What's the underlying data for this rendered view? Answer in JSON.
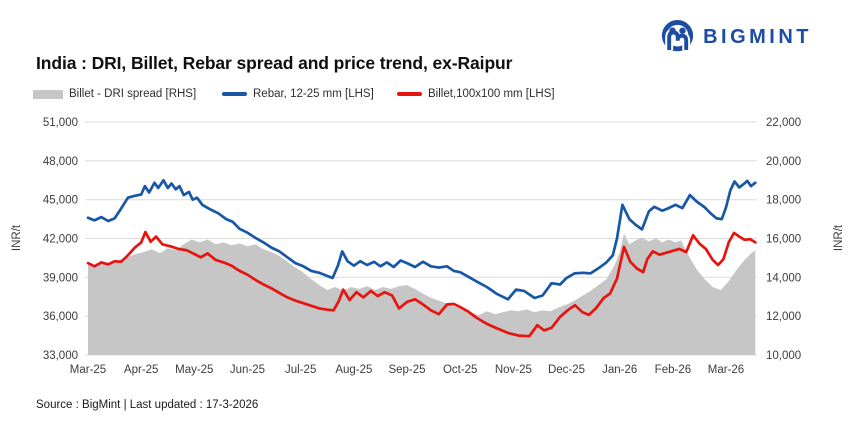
{
  "logo": {
    "text": "BIGMINT",
    "color": "#1c4da1"
  },
  "title": "India : DRI, Billet, Rebar spread and price trend, ex-Raipur",
  "legend": [
    {
      "label": "Billet - DRI spread  [RHS]",
      "swatch": "area",
      "color": "#c6c6c6"
    },
    {
      "label": "Rebar, 12-25 mm [LHS]",
      "swatch": "line",
      "color": "#1757a6"
    },
    {
      "label": "Billet,100x100 mm [LHS]",
      "swatch": "line",
      "color": "#e6140f"
    }
  ],
  "footer": {
    "source": "Source : BigMint | Last updated : 17-3-2026"
  },
  "chart_data": {
    "type": "line",
    "title": "India : DRI, Billet, Rebar spread and price trend, ex-Raipur",
    "x_unit": "months since Mar-2025 (fractional)",
    "x_tick_labels": [
      "Mar-25",
      "Apr-25",
      "May-25",
      "Jun-25",
      "Jul-25",
      "Aug-25",
      "Sep-25",
      "Oct-25",
      "Nov-25",
      "Dec-25",
      "Jan-26",
      "Feb-26",
      "Mar-26"
    ],
    "grid": "horizontal",
    "grid_color": "#dcdcdc",
    "left_axis": {
      "label": "INR/t",
      "min": 33000,
      "max": 51000,
      "step": 3000,
      "ticks": [
        33000,
        36000,
        39000,
        42000,
        45000,
        48000,
        51000
      ]
    },
    "right_axis": {
      "label": "INR/t",
      "min": 10000,
      "max": 22000,
      "step": 2000,
      "ticks": [
        10000,
        12000,
        14000,
        16000,
        18000,
        20000,
        22000
      ]
    },
    "series": [
      {
        "name": "Billet - DRI spread [RHS]",
        "type": "area",
        "axis": "right",
        "color": "#c6c6c6",
        "points": [
          [
            0.0,
            14800
          ],
          [
            0.15,
            14600
          ],
          [
            0.3,
            14800
          ],
          [
            0.45,
            14700
          ],
          [
            0.6,
            14900
          ],
          [
            0.75,
            15050
          ],
          [
            0.9,
            15200
          ],
          [
            1.05,
            15300
          ],
          [
            1.2,
            15450
          ],
          [
            1.35,
            15250
          ],
          [
            1.5,
            15500
          ],
          [
            1.65,
            15400
          ],
          [
            1.8,
            15700
          ],
          [
            1.95,
            15950
          ],
          [
            2.1,
            15800
          ],
          [
            2.25,
            15950
          ],
          [
            2.4,
            15700
          ],
          [
            2.55,
            15800
          ],
          [
            2.7,
            15650
          ],
          [
            2.85,
            15750
          ],
          [
            3.0,
            15600
          ],
          [
            3.15,
            15700
          ],
          [
            3.3,
            15450
          ],
          [
            3.45,
            15300
          ],
          [
            3.6,
            15100
          ],
          [
            3.75,
            14800
          ],
          [
            3.9,
            14500
          ],
          [
            4.05,
            14250
          ],
          [
            4.2,
            13900
          ],
          [
            4.35,
            13600
          ],
          [
            4.5,
            13350
          ],
          [
            4.65,
            13500
          ],
          [
            4.8,
            13300
          ],
          [
            4.95,
            13500
          ],
          [
            5.1,
            13400
          ],
          [
            5.25,
            13550
          ],
          [
            5.4,
            13350
          ],
          [
            5.55,
            13500
          ],
          [
            5.7,
            13400
          ],
          [
            5.85,
            13550
          ],
          [
            6.0,
            13600
          ],
          [
            6.15,
            13400
          ],
          [
            6.3,
            13150
          ],
          [
            6.45,
            12950
          ],
          [
            6.6,
            12800
          ],
          [
            6.75,
            12650
          ],
          [
            6.9,
            12500
          ],
          [
            7.05,
            12350
          ],
          [
            7.2,
            12200
          ],
          [
            7.35,
            12050
          ],
          [
            7.5,
            12250
          ],
          [
            7.65,
            12100
          ],
          [
            7.8,
            12200
          ],
          [
            7.95,
            12300
          ],
          [
            8.1,
            12250
          ],
          [
            8.25,
            12350
          ],
          [
            8.4,
            12200
          ],
          [
            8.55,
            12300
          ],
          [
            8.7,
            12250
          ],
          [
            8.85,
            12450
          ],
          [
            9.0,
            12600
          ],
          [
            9.15,
            12800
          ],
          [
            9.3,
            13050
          ],
          [
            9.45,
            13300
          ],
          [
            9.6,
            13600
          ],
          [
            9.75,
            13900
          ],
          [
            9.9,
            14600
          ],
          [
            10.0,
            15300
          ],
          [
            10.08,
            16250
          ],
          [
            10.18,
            15700
          ],
          [
            10.3,
            15900
          ],
          [
            10.42,
            16050
          ],
          [
            10.55,
            15850
          ],
          [
            10.68,
            16000
          ],
          [
            10.8,
            15800
          ],
          [
            10.92,
            15950
          ],
          [
            11.05,
            15800
          ],
          [
            11.15,
            15900
          ],
          [
            11.3,
            15100
          ],
          [
            11.45,
            14400
          ],
          [
            11.6,
            13900
          ],
          [
            11.75,
            13500
          ],
          [
            11.9,
            13350
          ],
          [
            12.05,
            13800
          ],
          [
            12.2,
            14400
          ],
          [
            12.35,
            14900
          ],
          [
            12.5,
            15300
          ],
          [
            12.55,
            15400
          ]
        ]
      },
      {
        "name": "Rebar, 12-25 mm [LHS]",
        "type": "line",
        "axis": "left",
        "color": "#1757a6",
        "width": 2.7,
        "points": [
          [
            0.0,
            43600
          ],
          [
            0.12,
            43400
          ],
          [
            0.25,
            43650
          ],
          [
            0.38,
            43350
          ],
          [
            0.5,
            43550
          ],
          [
            0.62,
            44300
          ],
          [
            0.75,
            45150
          ],
          [
            0.88,
            45300
          ],
          [
            1.0,
            45400
          ],
          [
            1.07,
            46050
          ],
          [
            1.15,
            45550
          ],
          [
            1.25,
            46300
          ],
          [
            1.32,
            45900
          ],
          [
            1.42,
            46500
          ],
          [
            1.5,
            45900
          ],
          [
            1.57,
            46250
          ],
          [
            1.65,
            45800
          ],
          [
            1.72,
            46050
          ],
          [
            1.8,
            45350
          ],
          [
            1.9,
            45600
          ],
          [
            1.97,
            45000
          ],
          [
            2.05,
            45150
          ],
          [
            2.15,
            44600
          ],
          [
            2.3,
            44250
          ],
          [
            2.45,
            43950
          ],
          [
            2.6,
            43500
          ],
          [
            2.72,
            43300
          ],
          [
            2.85,
            42750
          ],
          [
            3.0,
            42450
          ],
          [
            3.15,
            42050
          ],
          [
            3.3,
            41700
          ],
          [
            3.45,
            41300
          ],
          [
            3.6,
            41000
          ],
          [
            3.75,
            40550
          ],
          [
            3.9,
            40100
          ],
          [
            4.05,
            39850
          ],
          [
            4.2,
            39500
          ],
          [
            4.35,
            39350
          ],
          [
            4.5,
            39100
          ],
          [
            4.6,
            38950
          ],
          [
            4.7,
            39900
          ],
          [
            4.78,
            41000
          ],
          [
            4.88,
            40250
          ],
          [
            5.0,
            39900
          ],
          [
            5.12,
            40250
          ],
          [
            5.25,
            39950
          ],
          [
            5.38,
            40200
          ],
          [
            5.5,
            39850
          ],
          [
            5.62,
            40150
          ],
          [
            5.75,
            39800
          ],
          [
            5.88,
            40300
          ],
          [
            6.0,
            40100
          ],
          [
            6.15,
            39800
          ],
          [
            6.3,
            40200
          ],
          [
            6.45,
            39850
          ],
          [
            6.6,
            39750
          ],
          [
            6.75,
            39850
          ],
          [
            6.88,
            39500
          ],
          [
            7.0,
            39400
          ],
          [
            7.15,
            39050
          ],
          [
            7.3,
            38700
          ],
          [
            7.5,
            38250
          ],
          [
            7.7,
            37700
          ],
          [
            7.9,
            37300
          ],
          [
            8.05,
            38050
          ],
          [
            8.2,
            37950
          ],
          [
            8.4,
            37400
          ],
          [
            8.55,
            37600
          ],
          [
            8.72,
            38550
          ],
          [
            8.88,
            38450
          ],
          [
            9.0,
            38950
          ],
          [
            9.15,
            39300
          ],
          [
            9.3,
            39350
          ],
          [
            9.45,
            39300
          ],
          [
            9.6,
            39700
          ],
          [
            9.75,
            40150
          ],
          [
            9.87,
            40700
          ],
          [
            9.95,
            42000
          ],
          [
            10.05,
            44600
          ],
          [
            10.18,
            43500
          ],
          [
            10.3,
            43050
          ],
          [
            10.42,
            42700
          ],
          [
            10.55,
            44100
          ],
          [
            10.65,
            44450
          ],
          [
            10.8,
            44150
          ],
          [
            10.92,
            44350
          ],
          [
            11.05,
            44600
          ],
          [
            11.18,
            44350
          ],
          [
            11.32,
            45350
          ],
          [
            11.45,
            44850
          ],
          [
            11.6,
            44400
          ],
          [
            11.72,
            43900
          ],
          [
            11.82,
            43550
          ],
          [
            11.92,
            43500
          ],
          [
            12.0,
            44400
          ],
          [
            12.08,
            45700
          ],
          [
            12.16,
            46400
          ],
          [
            12.25,
            45950
          ],
          [
            12.33,
            46200
          ],
          [
            12.4,
            46450
          ],
          [
            12.47,
            46050
          ],
          [
            12.55,
            46300
          ]
        ]
      },
      {
        "name": "Billet,100x100 mm [LHS]",
        "type": "line",
        "axis": "left",
        "color": "#e6140f",
        "width": 2.7,
        "points": [
          [
            0.0,
            40100
          ],
          [
            0.12,
            39850
          ],
          [
            0.25,
            40150
          ],
          [
            0.38,
            40000
          ],
          [
            0.5,
            40250
          ],
          [
            0.62,
            40200
          ],
          [
            0.75,
            40700
          ],
          [
            0.88,
            41300
          ],
          [
            1.0,
            41700
          ],
          [
            1.08,
            42500
          ],
          [
            1.18,
            41750
          ],
          [
            1.28,
            42150
          ],
          [
            1.4,
            41550
          ],
          [
            1.55,
            41400
          ],
          [
            1.7,
            41200
          ],
          [
            1.85,
            41100
          ],
          [
            2.0,
            40800
          ],
          [
            2.12,
            40550
          ],
          [
            2.25,
            40850
          ],
          [
            2.4,
            40350
          ],
          [
            2.55,
            40150
          ],
          [
            2.7,
            39900
          ],
          [
            2.85,
            39500
          ],
          [
            3.0,
            39200
          ],
          [
            3.15,
            38800
          ],
          [
            3.3,
            38450
          ],
          [
            3.45,
            38150
          ],
          [
            3.6,
            37800
          ],
          [
            3.75,
            37450
          ],
          [
            3.9,
            37200
          ],
          [
            4.05,
            37000
          ],
          [
            4.2,
            36800
          ],
          [
            4.35,
            36600
          ],
          [
            4.5,
            36500
          ],
          [
            4.62,
            36450
          ],
          [
            4.72,
            37200
          ],
          [
            4.8,
            38050
          ],
          [
            4.92,
            37250
          ],
          [
            5.05,
            37850
          ],
          [
            5.18,
            37450
          ],
          [
            5.32,
            37950
          ],
          [
            5.45,
            37550
          ],
          [
            5.58,
            37850
          ],
          [
            5.72,
            37600
          ],
          [
            5.85,
            36600
          ],
          [
            6.0,
            37100
          ],
          [
            6.15,
            37300
          ],
          [
            6.3,
            36900
          ],
          [
            6.45,
            36450
          ],
          [
            6.6,
            36150
          ],
          [
            6.75,
            36900
          ],
          [
            6.88,
            36950
          ],
          [
            7.0,
            36700
          ],
          [
            7.15,
            36350
          ],
          [
            7.3,
            35900
          ],
          [
            7.5,
            35400
          ],
          [
            7.7,
            35050
          ],
          [
            7.9,
            34700
          ],
          [
            8.1,
            34500
          ],
          [
            8.3,
            34450
          ],
          [
            8.45,
            35300
          ],
          [
            8.58,
            34900
          ],
          [
            8.72,
            35100
          ],
          [
            8.88,
            35950
          ],
          [
            9.02,
            36450
          ],
          [
            9.16,
            36850
          ],
          [
            9.3,
            36300
          ],
          [
            9.42,
            36100
          ],
          [
            9.55,
            36600
          ],
          [
            9.7,
            37400
          ],
          [
            9.82,
            37750
          ],
          [
            9.95,
            38900
          ],
          [
            10.08,
            41350
          ],
          [
            10.2,
            40200
          ],
          [
            10.32,
            39700
          ],
          [
            10.44,
            39400
          ],
          [
            10.52,
            40400
          ],
          [
            10.62,
            41000
          ],
          [
            10.75,
            40750
          ],
          [
            10.88,
            40900
          ],
          [
            11.0,
            41050
          ],
          [
            11.12,
            41200
          ],
          [
            11.25,
            40950
          ],
          [
            11.38,
            42250
          ],
          [
            11.5,
            41600
          ],
          [
            11.62,
            41200
          ],
          [
            11.75,
            40350
          ],
          [
            11.85,
            39950
          ],
          [
            11.95,
            40400
          ],
          [
            12.05,
            41700
          ],
          [
            12.15,
            42430
          ],
          [
            12.25,
            42150
          ],
          [
            12.35,
            41900
          ],
          [
            12.45,
            41950
          ],
          [
            12.55,
            41700
          ]
        ]
      }
    ]
  }
}
